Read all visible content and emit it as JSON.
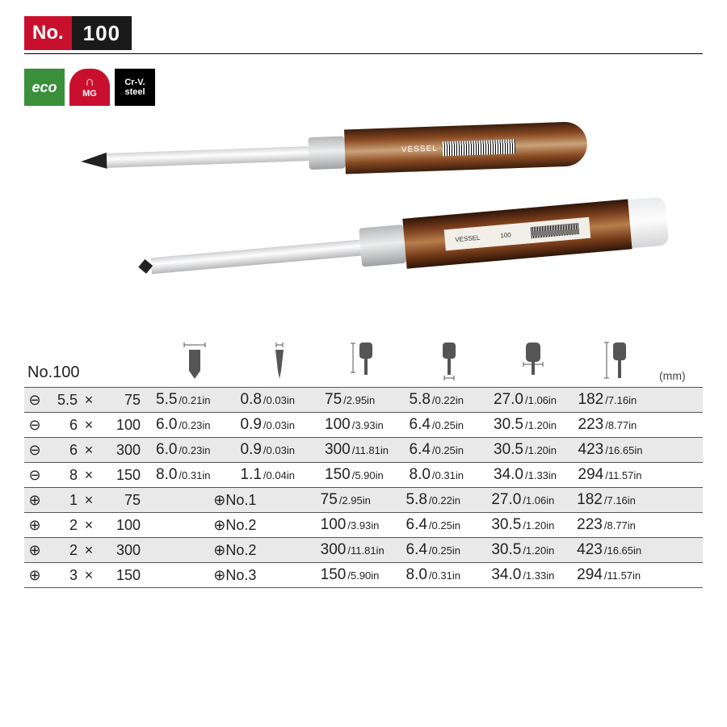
{
  "header": {
    "no_label": "No.",
    "no_value": "100"
  },
  "badges": {
    "eco": "eco",
    "mg": "MG",
    "crv1": "Cr-V.",
    "crv2": "steel"
  },
  "product_images": {
    "brand": "VESSEL",
    "model_on_handle": "100",
    "made_in": "MADE IN JAPAN"
  },
  "table": {
    "title": "No.100",
    "unit": "(mm)",
    "header_icons": [
      "tip-width",
      "tip-thick",
      "blade-len",
      "shaft-dia",
      "handle-dia",
      "overall-len"
    ],
    "rows": [
      {
        "sym": "⊖",
        "a": "5.5",
        "b": "75",
        "c": [
          [
            "5.5",
            "/0.21in"
          ],
          [
            "0.8",
            "/0.03in"
          ],
          [
            "75",
            "/2.95in"
          ],
          [
            "5.8",
            "/0.22in"
          ],
          [
            "27.0",
            "/1.06in"
          ],
          [
            "182",
            "/7.16in"
          ]
        ]
      },
      {
        "sym": "⊖",
        "a": "6",
        "b": "100",
        "c": [
          [
            "6.0",
            "/0.23in"
          ],
          [
            "0.9",
            "/0.03in"
          ],
          [
            "100",
            "/3.93in"
          ],
          [
            "6.4",
            "/0.25in"
          ],
          [
            "30.5",
            "/1.20in"
          ],
          [
            "223",
            "/8.77in"
          ]
        ]
      },
      {
        "sym": "⊖",
        "a": "6",
        "b": "300",
        "c": [
          [
            "6.0",
            "/0.23in"
          ],
          [
            "0.9",
            "/0.03in"
          ],
          [
            "300",
            "/11.81in"
          ],
          [
            "6.4",
            "/0.25in"
          ],
          [
            "30.5",
            "/1.20in"
          ],
          [
            "423",
            "/16.65in"
          ]
        ]
      },
      {
        "sym": "⊖",
        "a": "8",
        "b": "150",
        "c": [
          [
            "8.0",
            "/0.31in"
          ],
          [
            "1.1",
            "/0.04in"
          ],
          [
            "150",
            "/5.90in"
          ],
          [
            "8.0",
            "/0.31in"
          ],
          [
            "34.0",
            "/1.33in"
          ],
          [
            "294",
            "/11.57in"
          ]
        ]
      },
      {
        "sym": "⊕",
        "a": "1",
        "b": "75",
        "merge": "⊕No.1",
        "c": [
          null,
          null,
          [
            "75",
            "/2.95in"
          ],
          [
            "5.8",
            "/0.22in"
          ],
          [
            "27.0",
            "/1.06in"
          ],
          [
            "182",
            "/7.16in"
          ]
        ]
      },
      {
        "sym": "⊕",
        "a": "2",
        "b": "100",
        "merge": "⊕No.2",
        "c": [
          null,
          null,
          [
            "100",
            "/3.93in"
          ],
          [
            "6.4",
            "/0.25in"
          ],
          [
            "30.5",
            "/1.20in"
          ],
          [
            "223",
            "/8.77in"
          ]
        ]
      },
      {
        "sym": "⊕",
        "a": "2",
        "b": "300",
        "merge": "⊕No.2",
        "c": [
          null,
          null,
          [
            "300",
            "/11.81in"
          ],
          [
            "6.4",
            "/0.25in"
          ],
          [
            "30.5",
            "/1.20in"
          ],
          [
            "423",
            "/16.65in"
          ]
        ]
      },
      {
        "sym": "⊕",
        "a": "3",
        "b": "150",
        "merge": "⊕No.3",
        "c": [
          null,
          null,
          [
            "150",
            "/5.90in"
          ],
          [
            "8.0",
            "/0.31in"
          ],
          [
            "34.0",
            "/1.33in"
          ],
          [
            "294",
            "/11.57in"
          ]
        ]
      }
    ]
  },
  "colors": {
    "red": "#c8102e",
    "black": "#1a1a1a",
    "green": "#3a8f3a",
    "row_alt": "#e9e9e9",
    "rule": "#555555"
  }
}
